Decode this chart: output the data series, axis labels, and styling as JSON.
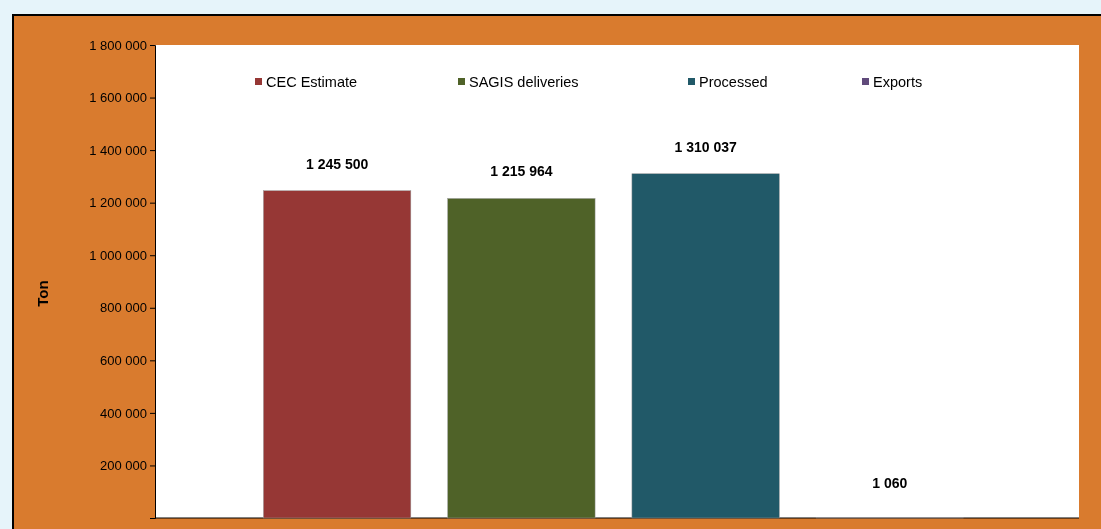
{
  "chart_data": {
    "type": "bar",
    "categories": [
      null
    ],
    "ylabel": "Ton",
    "ylim": [
      0,
      1800000
    ],
    "yticks": [
      {
        "value": 0,
        "label": null
      },
      {
        "value": 200000,
        "label": "200 000"
      },
      {
        "value": 400000,
        "label": "400 000"
      },
      {
        "value": 600000,
        "label": "600 000"
      },
      {
        "value": 800000,
        "label": "800 000"
      },
      {
        "value": 1000000,
        "label": "1 000 000"
      },
      {
        "value": 1200000,
        "label": "1 200 000"
      },
      {
        "value": 1400000,
        "label": "1 400 000"
      },
      {
        "value": 1600000,
        "label": "1 600 000"
      },
      {
        "value": 1800000,
        "label": "1 800 000"
      }
    ],
    "series": [
      {
        "name": "CEC Estimate",
        "color": "#963735",
        "values": [
          1245500
        ]
      },
      {
        "name": "SAGIS deliveries",
        "color": "#4f6228",
        "values": [
          1215964
        ]
      },
      {
        "name": "Processed",
        "color": "#215968",
        "values": [
          1310037
        ]
      },
      {
        "name": "Exports",
        "color": "#604a7b",
        "values": [
          1060
        ]
      }
    ],
    "data_labels": true,
    "legend": "top",
    "grid": false
  }
}
